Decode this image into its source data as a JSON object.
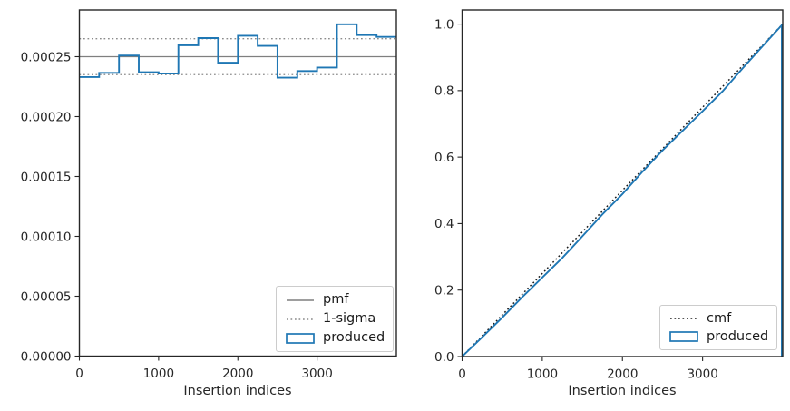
{
  "figure": {
    "background": "#ffffff",
    "axis_color": "#262626",
    "tick_label_color": "#262626"
  },
  "chart_data": [
    {
      "id": "pmf_plot",
      "type": "step-histogram",
      "title": "",
      "xlabel": "Insertion indices",
      "ylabel": "",
      "xlim": [
        0,
        4000
      ],
      "ylim": [
        0,
        0.000289
      ],
      "grid": false,
      "xticks": {
        "values": [
          0,
          1000,
          2000,
          3000
        ],
        "labels": [
          "0",
          "1000",
          "2000",
          "3000"
        ]
      },
      "yticks": {
        "values": [
          0,
          5e-05,
          0.0001,
          0.00015,
          0.0002,
          0.00025
        ],
        "labels": [
          "0.00000",
          "0.00005",
          "0.00010",
          "0.00015",
          "0.00020",
          "0.00025"
        ]
      },
      "series": [
        {
          "name": "pmf",
          "kind": "hline",
          "style": "solid",
          "color": "#7f7f7f",
          "y": 0.00025
        },
        {
          "name": "1-sigma",
          "kind": "band",
          "style": "dotted",
          "color": "#8c8c8c",
          "ys": [
            0.000265,
            0.000235
          ]
        },
        {
          "name": "produced",
          "kind": "steps",
          "style": "solid",
          "color": "#1f77b4",
          "bin_edges": [
            0,
            250,
            500,
            750,
            1000,
            1250,
            1500,
            1750,
            2000,
            2250,
            2500,
            2750,
            3000,
            3250,
            3500,
            3750,
            4000
          ],
          "values": [
            0.000233,
            0.0002365,
            0.000251,
            0.000237,
            0.000236,
            0.0002595,
            0.0002655,
            0.000245,
            0.0002675,
            0.000259,
            0.0002325,
            0.000238,
            0.000241,
            0.000277,
            0.000268,
            0.0002665
          ]
        }
      ],
      "legend": {
        "position": "lower right",
        "items": [
          {
            "label": "pmf",
            "marker": "solid-line",
            "color": "#7f7f7f"
          },
          {
            "label": "1-sigma",
            "marker": "dotted-line",
            "color": "#8c8c8c"
          },
          {
            "label": "produced",
            "marker": "rect",
            "color": "#1f77b4"
          }
        ]
      }
    },
    {
      "id": "cmf_plot",
      "type": "line",
      "title": "",
      "xlabel": "Insertion indices",
      "ylabel": "",
      "xlim": [
        0,
        4000
      ],
      "ylim": [
        0,
        1.0425
      ],
      "grid": false,
      "xticks": {
        "values": [
          0,
          1000,
          2000,
          3000
        ],
        "labels": [
          "0",
          "1000",
          "2000",
          "3000"
        ]
      },
      "yticks": {
        "values": [
          0,
          0.2,
          0.4,
          0.6,
          0.8,
          1.0
        ],
        "labels": [
          "0.0",
          "0.2",
          "0.4",
          "0.6",
          "0.8",
          "1.0"
        ]
      },
      "series": [
        {
          "name": "cmf",
          "kind": "line",
          "style": "dotted",
          "color": "#1a1a1a",
          "x": [
            0,
            4000
          ],
          "y": [
            0,
            1.0
          ]
        },
        {
          "name": "produced",
          "kind": "line",
          "style": "solid",
          "color": "#1f77b4",
          "x": [
            0,
            250,
            500,
            750,
            1000,
            1250,
            1500,
            1750,
            2000,
            2250,
            2500,
            2750,
            3000,
            3250,
            3500,
            3750,
            4000
          ],
          "y": [
            0,
            0.058,
            0.117,
            0.179,
            0.238,
            0.297,
            0.362,
            0.428,
            0.489,
            0.556,
            0.62,
            0.679,
            0.738,
            0.798,
            0.867,
            0.934,
            1.0
          ],
          "closing_edge": true
        }
      ],
      "legend": {
        "position": "lower right",
        "items": [
          {
            "label": "cmf",
            "marker": "dotted-line",
            "color": "#1a1a1a"
          },
          {
            "label": "produced",
            "marker": "rect",
            "color": "#1f77b4"
          }
        ]
      }
    }
  ]
}
